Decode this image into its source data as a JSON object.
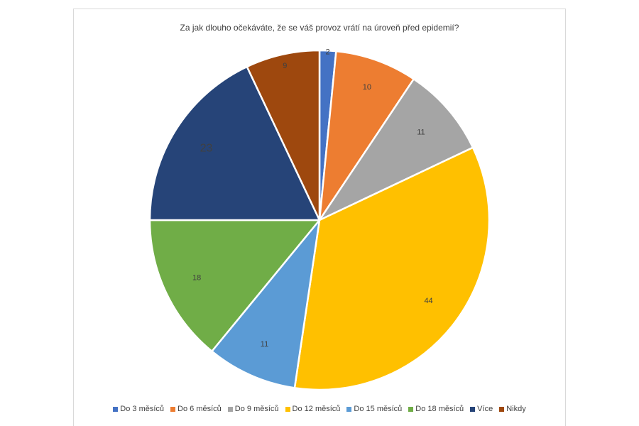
{
  "chart_data": {
    "type": "pie",
    "title": "Za jak dlouho očekáváte, že se váš provoz vrátí na úroveň před epidemií?",
    "categories": [
      "Do 3 měsíců",
      "Do 6 měsíců",
      "Do 9 měsíců",
      "Do 12 měsíců",
      "Do 15 měsíců",
      "Do 18 měsíců",
      "Více",
      "Nikdy"
    ],
    "values": [
      2,
      10,
      11,
      44,
      11,
      18,
      23,
      9
    ],
    "data_labels": [
      "2",
      "10",
      "11",
      "44",
      "11",
      "18",
      "23",
      "9"
    ],
    "colors": [
      "#4472c4",
      "#ed7d31",
      "#a5a5a5",
      "#ffc000",
      "#5b9bd5",
      "#70ad47",
      "#264478",
      "#9e480e"
    ],
    "legend_position": "bottom"
  }
}
